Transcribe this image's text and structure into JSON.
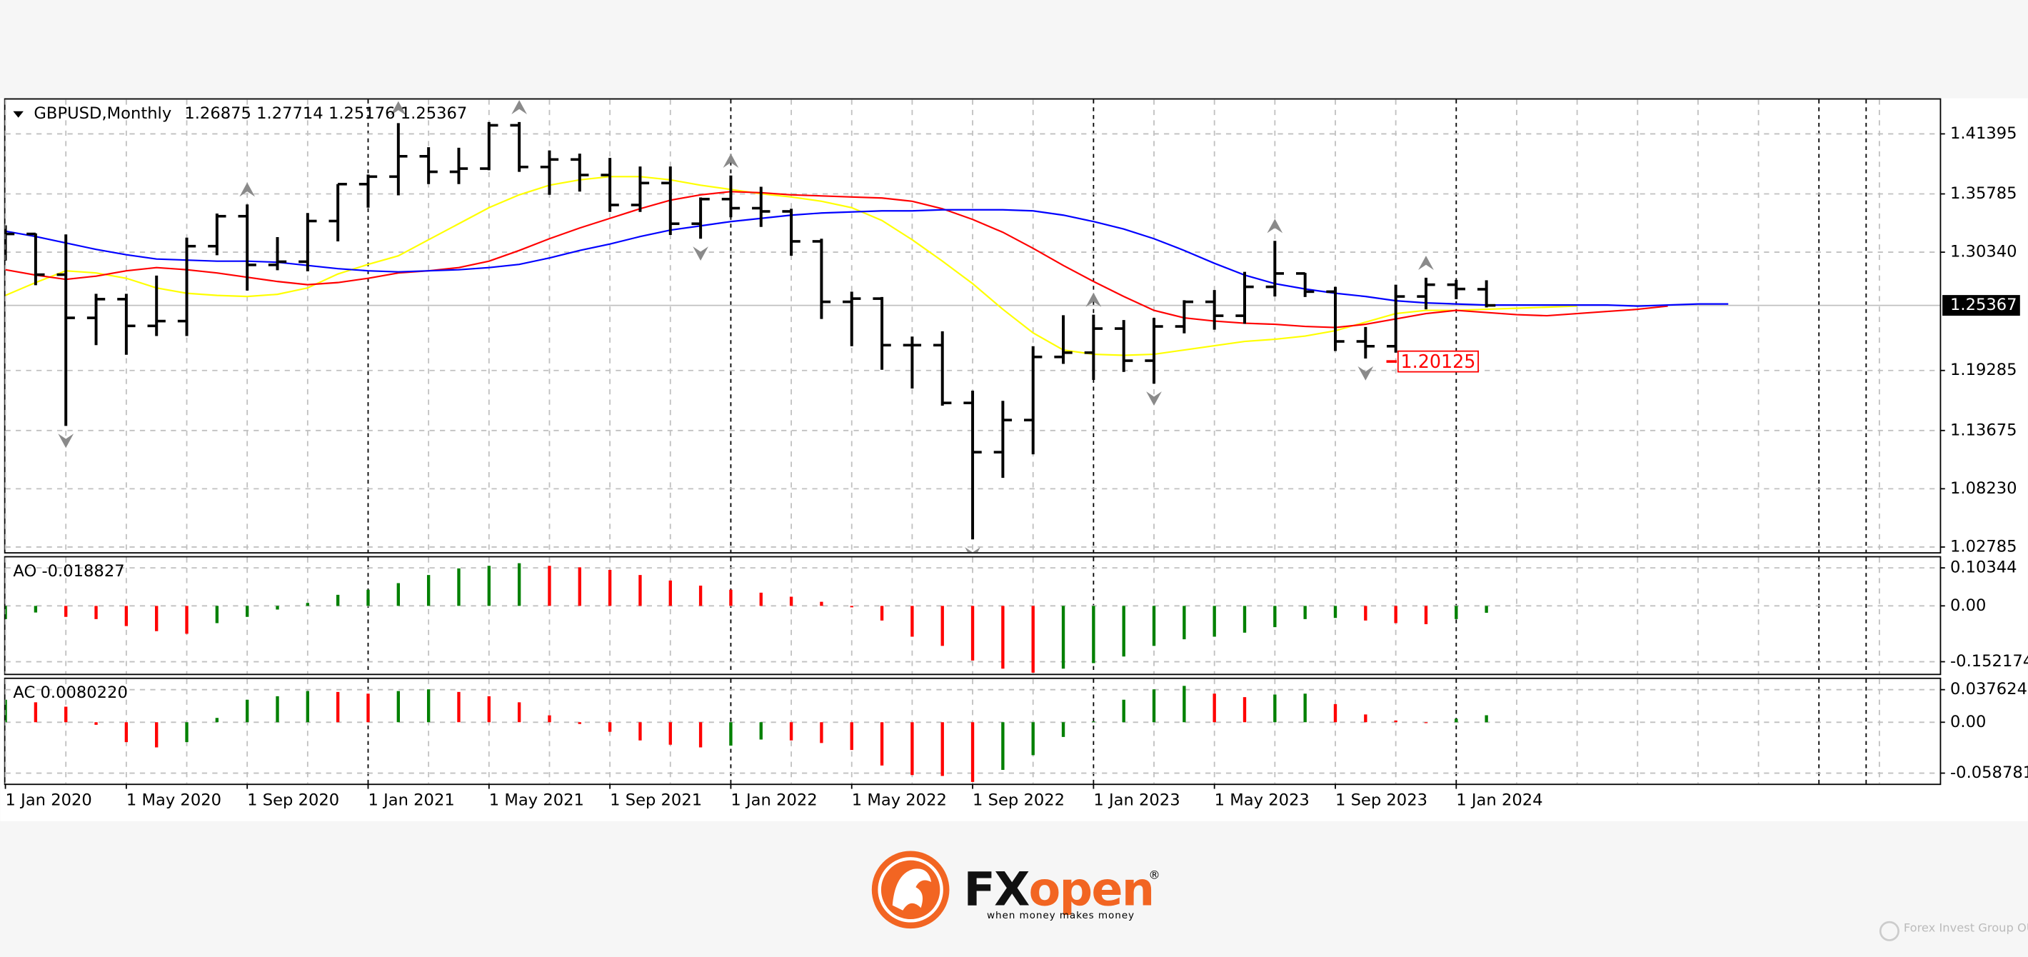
{
  "chart_data": {
    "type": "ohlc",
    "title": "GBPUSD,Monthly",
    "header_values": [
      1.26875,
      1.27714,
      1.25176,
      1.25367
    ],
    "categories": [
      "1 Jan 2020",
      null,
      null,
      null,
      "1 May 2020",
      null,
      null,
      null,
      "1 Sep 2020",
      null,
      null,
      null,
      "1 Jan 2021",
      null,
      null,
      null,
      "1 May 2021",
      null,
      null,
      null,
      "1 Sep 2021",
      null,
      null,
      null,
      "1 Jan 2022",
      null,
      null,
      null,
      "1 May 2022",
      null,
      null,
      null,
      "1 Sep 2022",
      null,
      null,
      null,
      "1 Jan 2023",
      null,
      null,
      null,
      "1 May 2023",
      null,
      null,
      null,
      "1 Sep 2023",
      null,
      null,
      null,
      "1 Jan 2024",
      null,
      null,
      null,
      null,
      null,
      null,
      null,
      null,
      null
    ],
    "xlim": [
      0,
      64
    ],
    "color": "#000000",
    "open": [
      1.3215,
      1.3204,
      1.2824,
      1.242,
      1.2595,
      1.2345,
      1.239,
      1.309,
      1.337,
      1.2915,
      1.2945,
      1.3325,
      1.367,
      1.374,
      1.393,
      1.3785,
      1.3815,
      1.422,
      1.383,
      1.39,
      1.3755,
      1.3475,
      1.368,
      1.33,
      1.353,
      1.3445,
      1.3415,
      1.3135,
      1.257,
      1.26,
      1.2165,
      1.2165,
      1.1625,
      1.1165,
      1.1465,
      1.2055,
      1.2095,
      1.232,
      1.202,
      1.234,
      1.257,
      1.244,
      1.271,
      1.2835,
      1.2665,
      1.22,
      1.2155,
      1.262,
      1.273,
      1.26875,
      null,
      null,
      null,
      null,
      null,
      null,
      null,
      null
    ],
    "high": [
      1.3285,
      1.321,
      1.32,
      1.2645,
      1.2645,
      1.2815,
      1.317,
      1.3395,
      1.348,
      1.3175,
      1.34,
      1.367,
      1.376,
      1.424,
      1.4015,
      1.401,
      1.425,
      1.425,
      1.3985,
      1.3955,
      1.3915,
      1.3835,
      1.3835,
      1.3545,
      1.375,
      1.3645,
      1.344,
      1.316,
      1.2665,
      1.2615,
      1.2245,
      1.2295,
      1.174,
      1.1645,
      1.2155,
      1.2445,
      1.245,
      1.24,
      1.242,
      1.2585,
      1.268,
      1.285,
      1.314,
      1.284,
      1.271,
      1.2335,
      1.273,
      1.2795,
      1.2775,
      1.27714,
      null,
      null,
      null,
      null,
      null,
      null,
      null,
      null
    ],
    "low": [
      1.2955,
      1.2725,
      1.141,
      1.2165,
      1.2075,
      1.225,
      1.225,
      1.3005,
      1.2675,
      1.2865,
      1.2855,
      1.3135,
      1.345,
      1.3565,
      1.367,
      1.367,
      1.38,
      1.3785,
      1.357,
      1.36,
      1.341,
      1.341,
      1.3195,
      1.316,
      1.336,
      1.327,
      1.3,
      1.241,
      1.2155,
      1.1935,
      1.176,
      1.16,
      1.035,
      1.0925,
      1.1145,
      1.199,
      1.184,
      1.1915,
      1.1805,
      1.2275,
      1.231,
      1.2365,
      1.262,
      1.2615,
      1.211,
      1.204,
      1.2095,
      1.25,
      1.2595,
      1.25176,
      null,
      null,
      null,
      null,
      null,
      null,
      null,
      null
    ],
    "close": [
      1.3204,
      1.2824,
      1.242,
      1.2595,
      1.2345,
      1.239,
      1.309,
      1.337,
      1.2915,
      1.2945,
      1.3325,
      1.367,
      1.374,
      1.393,
      1.3785,
      1.3815,
      1.422,
      1.383,
      1.39,
      1.3755,
      1.3475,
      1.368,
      1.33,
      1.353,
      1.3445,
      1.3415,
      1.3135,
      1.257,
      1.26,
      1.2165,
      1.2165,
      1.1625,
      1.1165,
      1.1465,
      1.2055,
      1.2095,
      1.232,
      1.202,
      1.234,
      1.257,
      1.244,
      1.271,
      1.2835,
      1.2665,
      1.22,
      1.2155,
      1.262,
      1.273,
      1.269,
      1.25367,
      null,
      null,
      null,
      null,
      null,
      null,
      null,
      null
    ],
    "ylim": [
      1.023,
      1.446
    ],
    "yticks": [
      1.41395,
      1.35785,
      {
        "value": 1.3034,
        "label": "1.30340"
      },
      1.19285,
      1.13675,
      {
        "value": 1.0823,
        "label": "1.08230"
      },
      1.02785
    ],
    "grid": true,
    "series": [
      {
        "color": "#ffff00",
        "values": [
          1.263,
          1.275,
          1.286,
          1.284,
          1.279,
          1.27,
          1.265,
          1.263,
          1.262,
          1.264,
          1.27,
          1.283,
          1.292,
          1.3,
          1.315,
          1.33,
          1.345,
          1.357,
          1.366,
          1.371,
          1.374,
          1.374,
          1.371,
          1.366,
          1.362,
          1.358,
          1.355,
          1.351,
          1.345,
          1.333,
          1.315,
          1.295,
          1.274,
          1.25,
          1.228,
          1.212,
          1.208,
          1.207,
          1.208,
          1.212,
          1.216,
          1.22,
          1.222,
          1.225,
          1.23,
          1.238,
          1.246,
          1.249,
          1.249,
          1.25,
          1.251,
          1.252,
          1.253,
          null,
          null,
          null,
          null,
          null
        ]
      },
      {
        "color": "#ff0000",
        "values": [
          1.287,
          1.282,
          1.278,
          1.281,
          1.286,
          1.289,
          1.287,
          1.284,
          1.28,
          1.276,
          1.273,
          1.275,
          1.279,
          1.284,
          1.286,
          1.289,
          1.295,
          1.305,
          1.316,
          1.326,
          1.335,
          1.344,
          1.352,
          1.357,
          1.36,
          1.359,
          1.357,
          1.356,
          1.355,
          1.354,
          1.351,
          1.344,
          1.334,
          1.322,
          1.307,
          1.291,
          1.276,
          1.262,
          1.249,
          1.242,
          1.239,
          1.237,
          1.236,
          1.234,
          1.233,
          1.236,
          1.241,
          1.246,
          1.249,
          1.247,
          1.245,
          1.244,
          1.246,
          1.248,
          1.25,
          1.253,
          null,
          null
        ]
      },
      {
        "color": "#0000ff",
        "values": [
          1.323,
          1.318,
          1.312,
          1.306,
          1.301,
          1.297,
          1.296,
          1.295,
          1.295,
          1.294,
          1.291,
          1.288,
          1.286,
          1.285,
          1.286,
          1.287,
          1.289,
          1.292,
          1.298,
          1.305,
          1.311,
          1.318,
          1.324,
          1.328,
          1.332,
          1.335,
          1.338,
          1.34,
          1.341,
          1.342,
          1.342,
          1.343,
          1.343,
          1.343,
          1.342,
          1.338,
          1.332,
          1.325,
          1.316,
          1.305,
          1.293,
          1.282,
          1.274,
          1.269,
          1.265,
          1.262,
          1.258,
          1.256,
          1.255,
          1.254,
          1.254,
          1.254,
          1.254,
          1.254,
          1.253,
          1.254,
          1.255,
          1.255
        ]
      }
    ],
    "fractals_up": [
      8,
      13,
      17,
      24,
      36,
      42,
      47
    ],
    "fractals_down": [
      2,
      23,
      32,
      38,
      45
    ],
    "price_marker": 1.20125,
    "indicators": [
      {
        "label": "AO -0.018827",
        "up_color": "#008000",
        "down_color": "#ff0000",
        "ylim": [
          -0.185,
          0.132
        ],
        "yticks": [
          0.10344,
          {
            "value": 0,
            "label": "0.00"
          },
          -0.152174
        ],
        "values": [
          -0.036,
          -0.018,
          -0.03,
          -0.036,
          -0.055,
          -0.069,
          -0.076,
          -0.047,
          -0.03,
          -0.01,
          0.008,
          0.03,
          0.044,
          0.062,
          0.084,
          0.102,
          0.109,
          0.116,
          0.109,
          0.105,
          0.098,
          0.084,
          0.069,
          0.055,
          0.044,
          0.036,
          0.025,
          0.011,
          -0.004,
          -0.04,
          -0.084,
          -0.109,
          -0.149,
          -0.171,
          -0.182,
          -0.171,
          -0.156,
          -0.138,
          -0.109,
          -0.091,
          -0.084,
          -0.073,
          -0.058,
          -0.036,
          -0.033,
          -0.04,
          -0.047,
          -0.05,
          -0.036,
          -0.018827,
          null,
          null,
          null,
          null,
          null,
          null,
          null,
          null
        ]
      },
      {
        "label": "AC 0.0080220",
        "up_color": "#008000",
        "down_color": "#ff0000",
        "ylim": [
          -0.071,
          0.05
        ],
        "yticks": [
          0.0376245,
          {
            "value": 0,
            "label": "0.00"
          },
          -0.058781
        ],
        "values": [
          0.026,
          0.023,
          0.018,
          -0.003,
          -0.023,
          -0.029,
          -0.023,
          0.005,
          0.026,
          0.03,
          0.036,
          0.035,
          0.033,
          0.036,
          0.038,
          0.035,
          0.03,
          0.023,
          0.008,
          -0.002,
          -0.011,
          -0.021,
          -0.026,
          -0.029,
          -0.027,
          -0.02,
          -0.021,
          -0.024,
          -0.032,
          -0.05,
          -0.061,
          -0.062,
          -0.069,
          -0.055,
          -0.038,
          -0.017,
          0.001,
          0.026,
          0.038,
          0.042,
          0.033,
          0.029,
          0.032,
          0.033,
          0.021,
          0.009,
          0.002,
          -0.001,
          0.004,
          0.008022,
          null,
          null,
          null,
          null,
          null,
          null,
          null,
          null
        ]
      }
    ]
  },
  "branding": {
    "name_left": "FX",
    "name_right": "open",
    "registered": "®",
    "tagline": "when money makes money",
    "company": "Forex Invest Group OU"
  }
}
